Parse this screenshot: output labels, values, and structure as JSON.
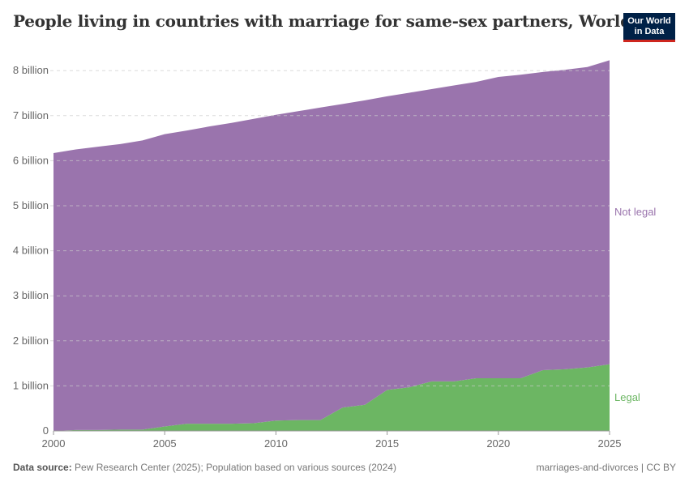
{
  "header": {
    "title": "People living in countries with marriage for same-sex partners, World",
    "logo": "Our World in Data"
  },
  "chart_data": {
    "type": "area",
    "stacked": true,
    "title": "People living in countries with marriage for same-sex partners, World",
    "x": [
      2000,
      2001,
      2002,
      2003,
      2004,
      2005,
      2006,
      2007,
      2008,
      2009,
      2010,
      2011,
      2012,
      2013,
      2014,
      2015,
      2016,
      2017,
      2018,
      2019,
      2020,
      2021,
      2022,
      2023,
      2024,
      2025
    ],
    "series": [
      {
        "name": "Legal",
        "color": "#6cb663",
        "values": [
          0.0,
          0.02,
          0.02,
          0.03,
          0.03,
          0.1,
          0.16,
          0.16,
          0.16,
          0.17,
          0.23,
          0.24,
          0.24,
          0.52,
          0.58,
          0.91,
          0.97,
          1.1,
          1.1,
          1.17,
          1.17,
          1.17,
          1.35,
          1.37,
          1.41,
          1.48
        ]
      },
      {
        "name": "Not legal",
        "color": "#9a74ad",
        "values": [
          6.17,
          6.23,
          6.29,
          6.34,
          6.42,
          6.49,
          6.51,
          6.6,
          6.68,
          6.76,
          6.79,
          6.86,
          6.94,
          6.74,
          6.76,
          6.52,
          6.54,
          6.49,
          6.57,
          6.58,
          6.69,
          6.74,
          6.62,
          6.65,
          6.67,
          6.75
        ]
      }
    ],
    "yticks": [
      0,
      1,
      2,
      3,
      4,
      5,
      6,
      7,
      8
    ],
    "ytick_labels": [
      "0",
      "1 billion",
      "2 billion",
      "3 billion",
      "4 billion",
      "5 billion",
      "6 billion",
      "7 billion",
      "8 billion"
    ],
    "xticks": [
      2000,
      2005,
      2010,
      2015,
      2020,
      2025
    ],
    "xtick_labels": [
      "2000",
      "2005",
      "2010",
      "2015",
      "2020",
      "2025"
    ],
    "ylim": [
      0,
      8.3
    ],
    "xlim": [
      2000,
      2025
    ],
    "grid": "horizontal dashed",
    "legend": "right, inline labels"
  },
  "footer": {
    "source_label": "Data source:",
    "source_text": "Pew Research Center (2025); Population based on various sources (2024)",
    "right": "marriages-and-divorces | CC BY"
  }
}
